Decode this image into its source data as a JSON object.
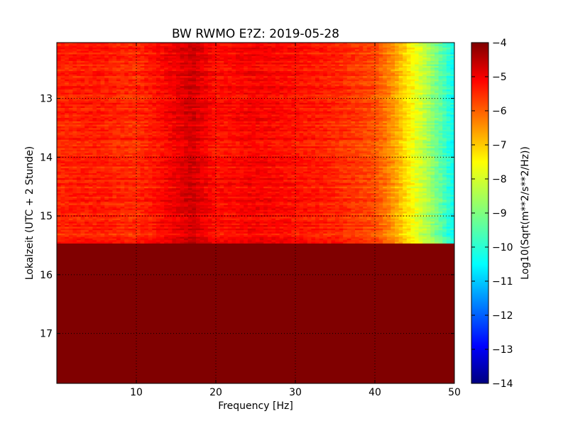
{
  "chart_data": {
    "type": "heatmap",
    "title": "BW RWMO E?Z: 2019-05-28",
    "xlabel": "Frequency [Hz]",
    "ylabel": "Lokalzeit (UTC + 2 Stunde)",
    "colorbar_label": "Log10(Sqrt(m**2/s**2/Hz))",
    "xlim": [
      0,
      50
    ],
    "ylim": [
      12.05,
      17.85
    ],
    "y_inverted": true,
    "x_ticks": [
      10,
      20,
      30,
      40,
      50
    ],
    "x_tick_labels": [
      "10",
      "20",
      "30",
      "40",
      "50"
    ],
    "y_ticks": [
      13,
      14,
      15,
      16,
      17
    ],
    "y_tick_labels": [
      "13",
      "14",
      "15",
      "16",
      "17"
    ],
    "colorbar_range": [
      -14,
      -4
    ],
    "colorbar_ticks": [
      -4,
      -5,
      -6,
      -7,
      -8,
      -9,
      -10,
      -11,
      -12,
      -13,
      -14
    ],
    "colorbar_tick_labels": [
      "−4",
      "−5",
      "−6",
      "−7",
      "−8",
      "−9",
      "−10",
      "−11",
      "−12",
      "−13",
      "−14"
    ],
    "colormap": "jet",
    "grid": true,
    "data_end_time": 15.47,
    "fill_value_after_data_end": -4,
    "frequency_profile_hz": [
      0,
      5,
      10,
      15,
      17,
      20,
      25,
      30,
      35,
      40,
      42,
      44,
      46,
      48,
      50
    ],
    "frequency_profile_log10": [
      -5.6,
      -5.5,
      -5.7,
      -5.1,
      -4.8,
      -5.4,
      -5.2,
      -5.4,
      -5.6,
      -6.0,
      -6.6,
      -7.5,
      -8.3,
      -9.2,
      -10.2
    ]
  }
}
